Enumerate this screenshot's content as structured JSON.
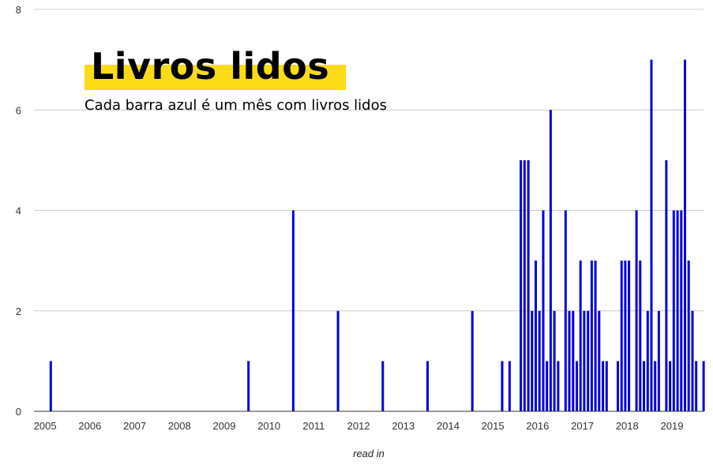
{
  "title": "Livros lidos",
  "subtitle": "Cada barra azul é um mês com livros lidos",
  "colors": {
    "bar": "#0000dd",
    "highlight": "#fbdb15",
    "grid": "#cccccc",
    "baseline": "#333333"
  },
  "chart_data": {
    "type": "bar",
    "title": "Livros lidos",
    "subtitle": "Cada barra azul é um mês com livros lidos",
    "xlabel": "read in",
    "ylabel": "",
    "ylim": [
      0,
      8
    ],
    "yticks": [
      "0",
      "2",
      "4",
      "6",
      "8"
    ],
    "xlim": [
      "2004-10",
      "2019-06"
    ],
    "xticks": [
      "2005",
      "2006",
      "2007",
      "2008",
      "2009",
      "2010",
      "2011",
      "2012",
      "2013",
      "2014",
      "2015",
      "2016",
      "2017",
      "2018",
      "2019"
    ],
    "grid": true,
    "legend": "none",
    "series": [
      {
        "x": [
          "2005-02",
          "2009-07",
          "2010-07",
          "2011-07",
          "2012-07",
          "2013-07",
          "2014-07",
          "2015-03",
          "2015-05",
          "2015-08",
          "2015-09",
          "2015-10",
          "2015-11",
          "2015-12",
          "2016-01",
          "2016-02",
          "2016-03",
          "2016-04",
          "2016-05",
          "2016-06",
          "2016-08",
          "2016-09",
          "2016-10",
          "2016-11",
          "2016-12",
          "2017-01",
          "2017-02",
          "2017-03",
          "2017-04",
          "2017-05",
          "2017-06",
          "2017-07",
          "2017-10",
          "2017-11",
          "2017-12",
          "2018-01",
          "2018-03",
          "2018-04",
          "2018-05",
          "2018-06",
          "2018-07",
          "2018-08",
          "2018-09",
          "2018-11",
          "2018-12",
          "2019-01",
          "2019-02",
          "2019-03",
          "2019-04",
          "2019-05",
          "2019-06",
          "2019-07",
          "2019-09"
        ],
        "values": [
          1,
          1,
          4,
          2,
          1,
          1,
          2,
          1,
          1,
          5,
          5,
          5,
          2,
          3,
          2,
          4,
          1,
          6,
          2,
          1,
          4,
          2,
          2,
          1,
          3,
          2,
          2,
          3,
          3,
          2,
          1,
          1,
          1,
          3,
          3,
          3,
          4,
          3,
          1,
          2,
          7,
          1,
          2,
          5,
          1,
          4,
          4,
          4,
          7,
          3,
          2,
          1,
          1
        ]
      }
    ]
  }
}
